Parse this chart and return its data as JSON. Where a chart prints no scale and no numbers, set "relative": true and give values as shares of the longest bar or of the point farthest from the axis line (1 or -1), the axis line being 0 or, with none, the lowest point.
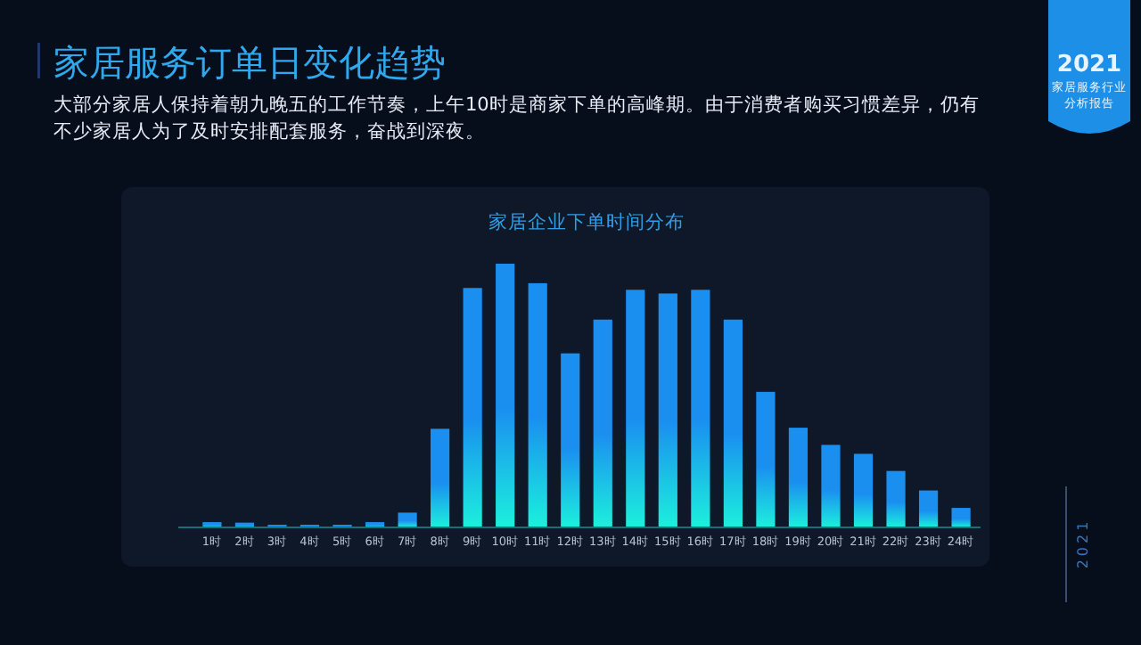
{
  "chart_data": {
    "type": "bar",
    "title": "家居服务订单日变化趋势",
    "subtitle": "大部分家居人保持着朝九晚五的工作节奏，上午10时是商家下单的高峰期。由于消费者购买习惯差异，仍有不少家居人为了及时安排配套服务，奋战到深夜。",
    "annotations": [
      "家居企业下单时间分布",
      "2021",
      "家居服务行业分析报告",
      "2021"
    ],
    "relative": true,
    "categories": [
      "1时",
      "2时",
      "3时",
      "4时",
      "5时",
      "6时",
      "7时",
      "8时",
      "9时",
      "10时",
      "11时",
      "12时",
      "13时",
      "14时",
      "15时",
      "16时",
      "17时",
      "18时",
      "19时",
      "20时",
      "21时",
      "22时",
      "23时",
      "24时"
    ],
    "values": [
      0.02,
      0.018,
      0.01,
      0.01,
      0.01,
      0.02,
      0.056,
      0.374,
      0.908,
      1,
      0.926,
      0.66,
      0.788,
      0.901,
      0.887,
      0.901,
      0.788,
      0.514,
      0.378,
      0.313,
      0.279,
      0.214,
      0.14,
      0.074
    ],
    "color": "#1a8ff0"
  }
}
